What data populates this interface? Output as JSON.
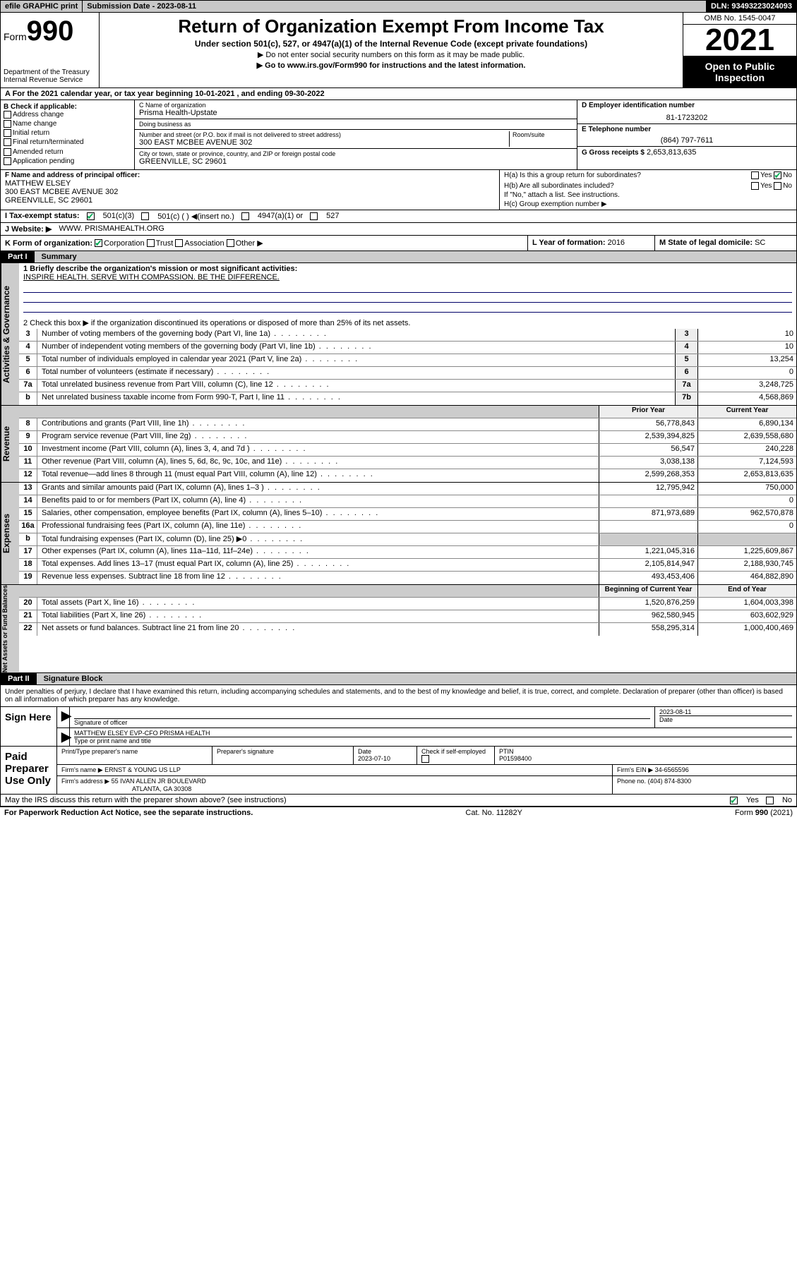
{
  "topbar": {
    "efile": "efile GRAPHIC print",
    "sub_label": "Submission Date - 2023-08-11",
    "dln": "DLN: 93493223024093"
  },
  "header": {
    "form_prefix": "Form",
    "form_num": "990",
    "dept": "Department of the Treasury",
    "irs": "Internal Revenue Service",
    "title": "Return of Organization Exempt From Income Tax",
    "subtitle": "Under section 501(c), 527, or 4947(a)(1) of the Internal Revenue Code (except private foundations)",
    "ssn_note": "▶ Do not enter social security numbers on this form as it may be made public.",
    "goto": "▶ Go to www.irs.gov/Form990 for instructions and the latest information.",
    "omb": "OMB No. 1545-0047",
    "year": "2021",
    "opi": "Open to Public Inspection"
  },
  "section_a": "A For the 2021 calendar year, or tax year beginning 10-01-2021   , and ending 09-30-2022",
  "col_b": {
    "hdr": "B Check if applicable:",
    "items": [
      "Address change",
      "Name change",
      "Initial return",
      "Final return/terminated",
      "Amended return",
      "Application pending"
    ]
  },
  "col_c": {
    "name_lbl": "C Name of organization",
    "name": "Prisma Health-Upstate",
    "dba_lbl": "Doing business as",
    "dba": "",
    "addr_lbl": "Number and street (or P.O. box if mail is not delivered to street address)",
    "room_lbl": "Room/suite",
    "addr": "300 EAST MCBEE AVENUE 302",
    "city_lbl": "City or town, state or province, country, and ZIP or foreign postal code",
    "city": "GREENVILLE, SC  29601"
  },
  "col_de": {
    "d_lbl": "D Employer identification number",
    "d_val": "81-1723202",
    "e_lbl": "E Telephone number",
    "e_val": "(864) 797-7611",
    "g_lbl": "G Gross receipts $",
    "g_val": "2,653,813,635"
  },
  "row_f": {
    "lbl": "F Name and address of principal officer:",
    "name": "MATTHEW ELSEY",
    "addr": "300 EAST MCBEE AVENUE 302",
    "city": "GREENVILLE, SC  29601"
  },
  "row_h": {
    "ha": "H(a)  Is this a group return for subordinates?",
    "hb": "H(b)  Are all subordinates included?",
    "hb_note": "If \"No,\" attach a list. See instructions.",
    "hc": "H(c)  Group exemption number ▶",
    "yes": "Yes",
    "no": "No"
  },
  "row_i": {
    "lbl": "I    Tax-exempt status:",
    "o1": "501(c)(3)",
    "o2": "501(c) (  ) ◀(insert no.)",
    "o3": "4947(a)(1) or",
    "o4": "527"
  },
  "row_j": {
    "lbl": "J    Website: ▶",
    "val": "WWW. PRISMAHEALTH.ORG"
  },
  "row_k": {
    "lbl": "K Form of organization:",
    "o1": "Corporation",
    "o2": "Trust",
    "o3": "Association",
    "o4": "Other ▶"
  },
  "row_lm": {
    "l_lbl": "L Year of formation:",
    "l_val": "2016",
    "m_lbl": "M State of legal domicile:",
    "m_val": "SC"
  },
  "part1": {
    "num": "Part I",
    "title": "Summary"
  },
  "summary": {
    "q1": "1  Briefly describe the organization's mission or most significant activities:",
    "mission": "INSPIRE HEALTH. SERVE WITH COMPASSION. BE THE DIFFERENCE.",
    "q2": "2   Check this box ▶       if the organization discontinued its operations or disposed of more than 25% of its net assets.",
    "vlabel_ag": "Activities & Governance",
    "vlabel_rev": "Revenue",
    "vlabel_exp": "Expenses",
    "vlabel_na": "Net Assets or Fund Balances",
    "prior_hdr": "Prior Year",
    "current_hdr": "Current Year",
    "begin_hdr": "Beginning of Current Year",
    "end_hdr": "End of Year",
    "rows_ag": [
      {
        "n": "3",
        "d": "Number of voting members of the governing body (Part VI, line 1a)",
        "box": "3",
        "v": "10"
      },
      {
        "n": "4",
        "d": "Number of independent voting members of the governing body (Part VI, line 1b)",
        "box": "4",
        "v": "10"
      },
      {
        "n": "5",
        "d": "Total number of individuals employed in calendar year 2021 (Part V, line 2a)",
        "box": "5",
        "v": "13,254"
      },
      {
        "n": "6",
        "d": "Total number of volunteers (estimate if necessary)",
        "box": "6",
        "v": "0"
      },
      {
        "n": "7a",
        "d": "Total unrelated business revenue from Part VIII, column (C), line 12",
        "box": "7a",
        "v": "3,248,725"
      },
      {
        "n": "b",
        "d": "Net unrelated business taxable income from Form 990-T, Part I, line 11",
        "box": "7b",
        "v": "4,568,869"
      }
    ],
    "rows_rev": [
      {
        "n": "8",
        "d": "Contributions and grants (Part VIII, line 1h)",
        "p": "56,778,843",
        "c": "6,890,134"
      },
      {
        "n": "9",
        "d": "Program service revenue (Part VIII, line 2g)",
        "p": "2,539,394,825",
        "c": "2,639,558,680"
      },
      {
        "n": "10",
        "d": "Investment income (Part VIII, column (A), lines 3, 4, and 7d )",
        "p": "56,547",
        "c": "240,228"
      },
      {
        "n": "11",
        "d": "Other revenue (Part VIII, column (A), lines 5, 6d, 8c, 9c, 10c, and 11e)",
        "p": "3,038,138",
        "c": "7,124,593"
      },
      {
        "n": "12",
        "d": "Total revenue—add lines 8 through 11 (must equal Part VIII, column (A), line 12)",
        "p": "2,599,268,353",
        "c": "2,653,813,635"
      }
    ],
    "rows_exp": [
      {
        "n": "13",
        "d": "Grants and similar amounts paid (Part IX, column (A), lines 1–3 )",
        "p": "12,795,942",
        "c": "750,000"
      },
      {
        "n": "14",
        "d": "Benefits paid to or for members (Part IX, column (A), line 4)",
        "p": "",
        "c": "0"
      },
      {
        "n": "15",
        "d": "Salaries, other compensation, employee benefits (Part IX, column (A), lines 5–10)",
        "p": "871,973,689",
        "c": "962,570,878"
      },
      {
        "n": "16a",
        "d": "Professional fundraising fees (Part IX, column (A), line 11e)",
        "p": "",
        "c": "0"
      },
      {
        "n": "b",
        "d": "Total fundraising expenses (Part IX, column (D), line 25) ▶0",
        "p": "__grey__",
        "c": "__grey__"
      },
      {
        "n": "17",
        "d": "Other expenses (Part IX, column (A), lines 11a–11d, 11f–24e)",
        "p": "1,221,045,316",
        "c": "1,225,609,867"
      },
      {
        "n": "18",
        "d": "Total expenses. Add lines 13–17 (must equal Part IX, column (A), line 25)",
        "p": "2,105,814,947",
        "c": "2,188,930,745"
      },
      {
        "n": "19",
        "d": "Revenue less expenses. Subtract line 18 from line 12",
        "p": "493,453,406",
        "c": "464,882,890"
      }
    ],
    "rows_na": [
      {
        "n": "20",
        "d": "Total assets (Part X, line 16)",
        "p": "1,520,876,259",
        "c": "1,604,003,398"
      },
      {
        "n": "21",
        "d": "Total liabilities (Part X, line 26)",
        "p": "962,580,945",
        "c": "603,602,929"
      },
      {
        "n": "22",
        "d": "Net assets or fund balances. Subtract line 21 from line 20",
        "p": "558,295,314",
        "c": "1,000,400,469"
      }
    ]
  },
  "part2": {
    "num": "Part II",
    "title": "Signature Block"
  },
  "penalty": "Under penalties of perjury, I declare that I have examined this return, including accompanying schedules and statements, and to the best of my knowledge and belief, it is true, correct, and complete. Declaration of preparer (other than officer) is based on all information of which preparer has any knowledge.",
  "sign": {
    "here": "Sign Here",
    "sig_lbl": "Signature of officer",
    "date": "2023-08-11",
    "date_lbl": "Date",
    "name": "MATTHEW ELSEY  EVP-CFO PRISMA HEALTH",
    "name_lbl": "Type or print name and title"
  },
  "preparer": {
    "hdr": "Paid Preparer Use Only",
    "c1": "Print/Type preparer's name",
    "c2": "Preparer's signature",
    "c3": "Date",
    "c3v": "2023-07-10",
    "c4": "Check        if self-employed",
    "c5": "PTIN",
    "c5v": "P01598400",
    "firm_lbl": "Firm's name      ▶",
    "firm": "ERNST & YOUNG US LLP",
    "ein_lbl": "Firm's EIN ▶",
    "ein": "34-6565596",
    "addr_lbl": "Firm's address ▶",
    "addr1": "55 IVAN ALLEN JR BOULEVARD",
    "addr2": "ATLANTA, GA  30308",
    "phone_lbl": "Phone no.",
    "phone": "(404) 874-8300"
  },
  "irs_discuss": "May the IRS discuss this return with the preparer shown above? (see instructions)",
  "foot": {
    "pra": "For Paperwork Reduction Act Notice, see the separate instructions.",
    "cat": "Cat. No. 11282Y",
    "form": "Form 990 (2021)"
  }
}
